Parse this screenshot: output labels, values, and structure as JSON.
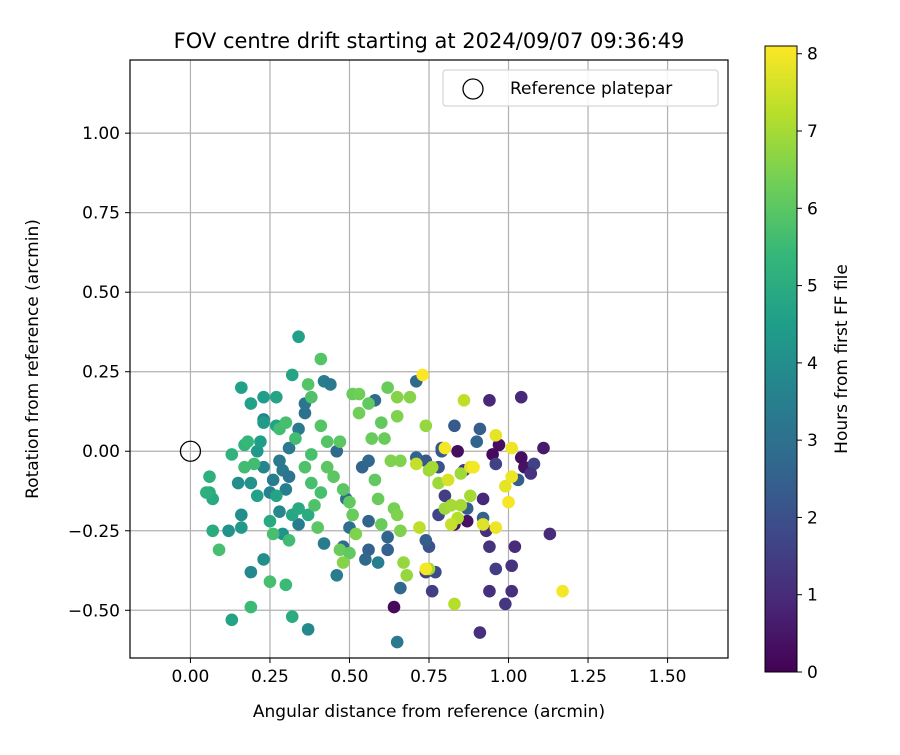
{
  "chart_data": {
    "type": "scatter",
    "title": "FOV centre drift starting at 2024/09/07 09:36:49",
    "xlabel": "Angular distance from reference (arcmin)",
    "ylabel": "Rotation from reference (arcmin)",
    "xlim": [
      -0.19,
      1.69
    ],
    "ylim": [
      -0.65,
      1.23
    ],
    "x_ticks": [
      0.0,
      0.25,
      0.5,
      0.75,
      1.0,
      1.25,
      1.5
    ],
    "x_tick_labels": [
      "0.00",
      "0.25",
      "0.50",
      "0.75",
      "1.00",
      "1.25",
      "1.50"
    ],
    "y_ticks": [
      -0.5,
      -0.25,
      0.0,
      0.25,
      0.5,
      0.75,
      1.0
    ],
    "y_tick_labels": [
      "−0.50",
      "−0.25",
      "0.00",
      "0.25",
      "0.50",
      "0.75",
      "1.00"
    ],
    "grid": true,
    "legend": {
      "placement": "top-right",
      "entries": [
        {
          "label": "Reference platepar",
          "marker": "open-circle"
        }
      ]
    },
    "reference_point": {
      "x": 0.0,
      "y": 0.0
    },
    "colorbar": {
      "label": "Hours from first FF file",
      "range": [
        0,
        8.1
      ],
      "ticks": [
        0,
        1,
        2,
        3,
        4,
        5,
        6,
        7,
        8
      ],
      "tick_labels": [
        "0",
        "1",
        "2",
        "3",
        "4",
        "5",
        "6",
        "7",
        "8"
      ],
      "colormap": "viridis"
    },
    "colormap_stops": [
      "#440154",
      "#482878",
      "#3e4989",
      "#31688e",
      "#26828e",
      "#1f9e89",
      "#35b779",
      "#6ece58",
      "#b5de2b",
      "#fde725"
    ],
    "points": [
      {
        "x": 0.64,
        "y": -0.49,
        "h": 0.2
      },
      {
        "x": 0.83,
        "y": -0.23,
        "h": 0.4
      },
      {
        "x": 0.87,
        "y": -0.22,
        "h": 0.4
      },
      {
        "x": 0.84,
        "y": 0.0,
        "h": 0.3
      },
      {
        "x": 0.95,
        "y": -0.01,
        "h": 0.2
      },
      {
        "x": 0.97,
        "y": 0.02,
        "h": 0.3
      },
      {
        "x": 1.04,
        "y": -0.02,
        "h": 0.3
      },
      {
        "x": 1.05,
        "y": -0.05,
        "h": 0.4
      },
      {
        "x": 1.11,
        "y": 0.01,
        "h": 0.6
      },
      {
        "x": 1.04,
        "y": 0.17,
        "h": 0.9
      },
      {
        "x": 0.94,
        "y": 0.16,
        "h": 0.9
      },
      {
        "x": 1.13,
        "y": -0.26,
        "h": 1.0
      },
      {
        "x": 0.91,
        "y": -0.57,
        "h": 1.1
      },
      {
        "x": 0.94,
        "y": -0.44,
        "h": 1.1
      },
      {
        "x": 0.94,
        "y": -0.3,
        "h": 1.2
      },
      {
        "x": 0.92,
        "y": -0.15,
        "h": 0.9
      },
      {
        "x": 0.93,
        "y": -0.25,
        "h": 1.1
      },
      {
        "x": 1.01,
        "y": -0.36,
        "h": 1.2
      },
      {
        "x": 1.01,
        "y": -0.44,
        "h": 1.1
      },
      {
        "x": 1.02,
        "y": -0.3,
        "h": 1.0
      },
      {
        "x": 0.99,
        "y": -0.48,
        "h": 1.3
      },
      {
        "x": 0.96,
        "y": -0.37,
        "h": 1.5
      },
      {
        "x": 0.76,
        "y": -0.44,
        "h": 1.5
      },
      {
        "x": 0.74,
        "y": -0.38,
        "h": 1.6
      },
      {
        "x": 1.08,
        "y": -0.04,
        "h": 1.6
      },
      {
        "x": 1.07,
        "y": -0.07,
        "h": 1.2
      },
      {
        "x": 0.96,
        "y": -0.04,
        "h": 1.6
      },
      {
        "x": 0.86,
        "y": -0.06,
        "h": 1.3
      },
      {
        "x": 0.8,
        "y": -0.14,
        "h": 1.5
      },
      {
        "x": 0.77,
        "y": -0.38,
        "h": 1.9
      },
      {
        "x": 0.75,
        "y": -0.3,
        "h": 2.1
      },
      {
        "x": 0.74,
        "y": -0.28,
        "h": 2.4
      },
      {
        "x": 0.78,
        "y": -0.2,
        "h": 1.7
      },
      {
        "x": 0.78,
        "y": -0.05,
        "h": 2.1
      },
      {
        "x": 0.71,
        "y": -0.02,
        "h": 2.6
      },
      {
        "x": 0.74,
        "y": -0.03,
        "h": 2.2
      },
      {
        "x": 0.79,
        "y": 0.01,
        "h": 2.2
      },
      {
        "x": 0.79,
        "y": 0.0,
        "h": 2.3
      },
      {
        "x": 0.83,
        "y": 0.08,
        "h": 2.3
      },
      {
        "x": 0.91,
        "y": 0.07,
        "h": 2.4
      },
      {
        "x": 0.9,
        "y": 0.03,
        "h": 2.6
      },
      {
        "x": 0.87,
        "y": -0.18,
        "h": 2.4
      },
      {
        "x": 0.92,
        "y": -0.21,
        "h": 2.5
      },
      {
        "x": 1.03,
        "y": -0.09,
        "h": 2.4
      },
      {
        "x": 0.71,
        "y": 0.22,
        "h": 2.8
      },
      {
        "x": 0.58,
        "y": 0.16,
        "h": 2.8
      },
      {
        "x": 0.56,
        "y": -0.03,
        "h": 2.7
      },
      {
        "x": 0.54,
        "y": -0.05,
        "h": 2.6
      },
      {
        "x": 0.56,
        "y": -0.22,
        "h": 2.6
      },
      {
        "x": 0.56,
        "y": -0.31,
        "h": 2.5
      },
      {
        "x": 0.62,
        "y": -0.27,
        "h": 2.6
      },
      {
        "x": 0.62,
        "y": -0.31,
        "h": 2.5
      },
      {
        "x": 0.66,
        "y": -0.43,
        "h": 2.7
      },
      {
        "x": 0.65,
        "y": -0.6,
        "h": 3.3
      },
      {
        "x": 0.46,
        "y": 0.0,
        "h": 2.8
      },
      {
        "x": 0.49,
        "y": -0.15,
        "h": 3.0
      },
      {
        "x": 0.5,
        "y": -0.24,
        "h": 2.9
      },
      {
        "x": 0.48,
        "y": -0.3,
        "h": 2.8
      },
      {
        "x": 0.55,
        "y": -0.34,
        "h": 2.7
      },
      {
        "x": 0.46,
        "y": -0.39,
        "h": 3.4
      },
      {
        "x": 0.42,
        "y": -0.29,
        "h": 3.4
      },
      {
        "x": 0.59,
        "y": -0.35,
        "h": 3.5
      },
      {
        "x": 0.37,
        "y": -0.56,
        "h": 3.8
      },
      {
        "x": 0.36,
        "y": 0.12,
        "h": 3.0
      },
      {
        "x": 0.36,
        "y": 0.15,
        "h": 3.2
      },
      {
        "x": 0.34,
        "y": 0.07,
        "h": 3.4
      },
      {
        "x": 0.42,
        "y": 0.22,
        "h": 3.5
      },
      {
        "x": 0.44,
        "y": 0.21,
        "h": 3.3
      },
      {
        "x": 0.31,
        "y": 0.01,
        "h": 3.3
      },
      {
        "x": 0.28,
        "y": -0.03,
        "h": 3.3
      },
      {
        "x": 0.29,
        "y": -0.06,
        "h": 3.3
      },
      {
        "x": 0.26,
        "y": -0.09,
        "h": 3.4
      },
      {
        "x": 0.31,
        "y": -0.08,
        "h": 3.2
      },
      {
        "x": 0.34,
        "y": -0.23,
        "h": 3.4
      },
      {
        "x": 0.3,
        "y": -0.12,
        "h": 3.5
      },
      {
        "x": 0.23,
        "y": 0.1,
        "h": 3.7
      },
      {
        "x": 0.23,
        "y": -0.05,
        "h": 3.7
      },
      {
        "x": 0.25,
        "y": -0.13,
        "h": 3.6
      },
      {
        "x": 0.19,
        "y": -0.38,
        "h": 3.8
      },
      {
        "x": 0.23,
        "y": -0.34,
        "h": 4.0
      },
      {
        "x": 0.29,
        "y": -0.26,
        "h": 4.1
      },
      {
        "x": 0.28,
        "y": -0.19,
        "h": 3.8
      },
      {
        "x": 0.15,
        "y": -0.1,
        "h": 4.0
      },
      {
        "x": 0.19,
        "y": -0.1,
        "h": 4.1
      },
      {
        "x": 0.16,
        "y": -0.2,
        "h": 4.0
      },
      {
        "x": 0.12,
        "y": -0.25,
        "h": 4.1
      },
      {
        "x": 0.16,
        "y": -0.24,
        "h": 4.3
      },
      {
        "x": 0.21,
        "y": 0.0,
        "h": 4.3
      },
      {
        "x": 0.23,
        "y": 0.09,
        "h": 4.4
      },
      {
        "x": 0.27,
        "y": 0.08,
        "h": 4.6
      },
      {
        "x": 0.22,
        "y": 0.03,
        "h": 4.5
      },
      {
        "x": 0.19,
        "y": 0.15,
        "h": 4.6
      },
      {
        "x": 0.16,
        "y": 0.2,
        "h": 4.6
      },
      {
        "x": 0.23,
        "y": 0.17,
        "h": 4.5
      },
      {
        "x": 0.21,
        "y": -0.14,
        "h": 4.6
      },
      {
        "x": 0.27,
        "y": -0.14,
        "h": 4.7
      },
      {
        "x": 0.32,
        "y": -0.2,
        "h": 4.8
      },
      {
        "x": 0.34,
        "y": -0.18,
        "h": 4.9
      },
      {
        "x": 0.37,
        "y": -0.2,
        "h": 5.0
      },
      {
        "x": 0.34,
        "y": 0.36,
        "h": 4.6
      },
      {
        "x": 0.32,
        "y": 0.24,
        "h": 4.7
      },
      {
        "x": 0.27,
        "y": 0.17,
        "h": 4.7
      },
      {
        "x": 0.25,
        "y": -0.22,
        "h": 4.9
      },
      {
        "x": 0.13,
        "y": -0.53,
        "h": 4.7
      },
      {
        "x": 0.32,
        "y": -0.52,
        "h": 5.0
      },
      {
        "x": 0.07,
        "y": -0.15,
        "h": 4.9
      },
      {
        "x": 0.06,
        "y": -0.13,
        "h": 5.0
      },
      {
        "x": 0.05,
        "y": -0.13,
        "h": 5.1
      },
      {
        "x": 0.07,
        "y": -0.25,
        "h": 5.0
      },
      {
        "x": 0.06,
        "y": -0.08,
        "h": 5.1
      },
      {
        "x": 0.13,
        "y": -0.01,
        "h": 5.2
      },
      {
        "x": 0.17,
        "y": 0.02,
        "h": 5.3
      },
      {
        "x": 0.18,
        "y": 0.03,
        "h": 5.4
      },
      {
        "x": 0.17,
        "y": -0.05,
        "h": 5.6
      },
      {
        "x": 0.2,
        "y": -0.04,
        "h": 5.6
      },
      {
        "x": 0.09,
        "y": -0.31,
        "h": 5.7
      },
      {
        "x": 0.19,
        "y": -0.49,
        "h": 5.5
      },
      {
        "x": 0.25,
        "y": -0.41,
        "h": 5.7
      },
      {
        "x": 0.3,
        "y": -0.42,
        "h": 5.5
      },
      {
        "x": 0.31,
        "y": -0.28,
        "h": 5.6
      },
      {
        "x": 0.26,
        "y": -0.26,
        "h": 5.7
      },
      {
        "x": 0.28,
        "y": 0.07,
        "h": 5.6
      },
      {
        "x": 0.3,
        "y": 0.09,
        "h": 5.7
      },
      {
        "x": 0.33,
        "y": 0.04,
        "h": 5.6
      },
      {
        "x": 0.36,
        "y": -0.05,
        "h": 5.8
      },
      {
        "x": 0.38,
        "y": -0.01,
        "h": 5.7
      },
      {
        "x": 0.38,
        "y": -0.1,
        "h": 5.7
      },
      {
        "x": 0.41,
        "y": -0.13,
        "h": 5.7
      },
      {
        "x": 0.39,
        "y": -0.17,
        "h": 5.8
      },
      {
        "x": 0.4,
        "y": -0.24,
        "h": 6.0
      },
      {
        "x": 0.41,
        "y": 0.29,
        "h": 5.9
      },
      {
        "x": 0.37,
        "y": 0.21,
        "h": 5.9
      },
      {
        "x": 0.38,
        "y": 0.17,
        "h": 5.8
      },
      {
        "x": 0.41,
        "y": 0.08,
        "h": 5.9
      },
      {
        "x": 0.43,
        "y": 0.03,
        "h": 5.9
      },
      {
        "x": 0.43,
        "y": -0.05,
        "h": 6.0
      },
      {
        "x": 0.45,
        "y": -0.08,
        "h": 6.0
      },
      {
        "x": 0.47,
        "y": 0.03,
        "h": 6.0
      },
      {
        "x": 0.48,
        "y": -0.12,
        "h": 6.0
      },
      {
        "x": 0.5,
        "y": -0.16,
        "h": 6.1
      },
      {
        "x": 0.51,
        "y": -0.2,
        "h": 6.2
      },
      {
        "x": 0.47,
        "y": -0.31,
        "h": 6.2
      },
      {
        "x": 0.5,
        "y": -0.32,
        "h": 6.1
      },
      {
        "x": 0.51,
        "y": 0.18,
        "h": 6.2
      },
      {
        "x": 0.53,
        "y": 0.18,
        "h": 6.3
      },
      {
        "x": 0.56,
        "y": 0.15,
        "h": 6.1
      },
      {
        "x": 0.53,
        "y": 0.12,
        "h": 6.3
      },
      {
        "x": 0.57,
        "y": 0.04,
        "h": 6.2
      },
      {
        "x": 0.6,
        "y": 0.09,
        "h": 6.1
      },
      {
        "x": 0.62,
        "y": 0.2,
        "h": 6.2
      },
      {
        "x": 0.61,
        "y": 0.04,
        "h": 6.2
      },
      {
        "x": 0.58,
        "y": -0.09,
        "h": 6.1
      },
      {
        "x": 0.59,
        "y": -0.15,
        "h": 6.2
      },
      {
        "x": 0.6,
        "y": -0.23,
        "h": 6.2
      },
      {
        "x": 0.64,
        "y": -0.18,
        "h": 6.4
      },
      {
        "x": 0.65,
        "y": -0.2,
        "h": 6.5
      },
      {
        "x": 0.66,
        "y": -0.25,
        "h": 6.5
      },
      {
        "x": 0.63,
        "y": -0.03,
        "h": 6.5
      },
      {
        "x": 0.66,
        "y": -0.03,
        "h": 6.5
      },
      {
        "x": 0.65,
        "y": 0.11,
        "h": 6.5
      },
      {
        "x": 0.65,
        "y": 0.17,
        "h": 6.6
      },
      {
        "x": 0.69,
        "y": 0.17,
        "h": 6.6
      },
      {
        "x": 0.52,
        "y": -0.26,
        "h": 6.5
      },
      {
        "x": 0.48,
        "y": -0.35,
        "h": 6.6
      },
      {
        "x": 0.67,
        "y": -0.35,
        "h": 6.8
      },
      {
        "x": 0.68,
        "y": -0.39,
        "h": 6.8
      },
      {
        "x": 0.75,
        "y": -0.37,
        "h": 7.0
      },
      {
        "x": 0.74,
        "y": 0.08,
        "h": 6.8
      },
      {
        "x": 0.75,
        "y": -0.06,
        "h": 6.9
      },
      {
        "x": 0.76,
        "y": -0.05,
        "h": 7.0
      },
      {
        "x": 0.78,
        "y": -0.1,
        "h": 6.9
      },
      {
        "x": 0.8,
        "y": -0.18,
        "h": 6.9
      },
      {
        "x": 0.82,
        "y": -0.17,
        "h": 7.0
      },
      {
        "x": 0.85,
        "y": -0.07,
        "h": 6.9
      },
      {
        "x": 0.85,
        "y": -0.17,
        "h": 7.0
      },
      {
        "x": 0.88,
        "y": -0.14,
        "h": 7.0
      },
      {
        "x": 0.84,
        "y": -0.21,
        "h": 7.2
      },
      {
        "x": 0.83,
        "y": -0.48,
        "h": 7.2
      },
      {
        "x": 0.86,
        "y": 0.16,
        "h": 7.3
      },
      {
        "x": 0.72,
        "y": -0.24,
        "h": 7.3
      },
      {
        "x": 0.71,
        "y": -0.04,
        "h": 7.4
      },
      {
        "x": 0.82,
        "y": -0.23,
        "h": 7.4
      },
      {
        "x": 0.81,
        "y": -0.09,
        "h": 7.6
      },
      {
        "x": 0.88,
        "y": -0.05,
        "h": 7.7
      },
      {
        "x": 0.92,
        "y": -0.23,
        "h": 7.7
      },
      {
        "x": 0.96,
        "y": 0.05,
        "h": 7.8
      },
      {
        "x": 0.99,
        "y": -0.11,
        "h": 7.8
      },
      {
        "x": 1.01,
        "y": -0.08,
        "h": 7.9
      },
      {
        "x": 1.0,
        "y": -0.16,
        "h": 8.0
      },
      {
        "x": 0.96,
        "y": -0.24,
        "h": 7.9
      },
      {
        "x": 1.01,
        "y": 0.01,
        "h": 7.9
      },
      {
        "x": 0.8,
        "y": 0.01,
        "h": 8.0
      },
      {
        "x": 0.73,
        "y": 0.24,
        "h": 8.1
      },
      {
        "x": 1.17,
        "y": -0.44,
        "h": 8.0
      },
      {
        "x": 0.74,
        "y": -0.37,
        "h": 8.0
      },
      {
        "x": 0.89,
        "y": -0.05,
        "h": 8.0
      }
    ]
  }
}
